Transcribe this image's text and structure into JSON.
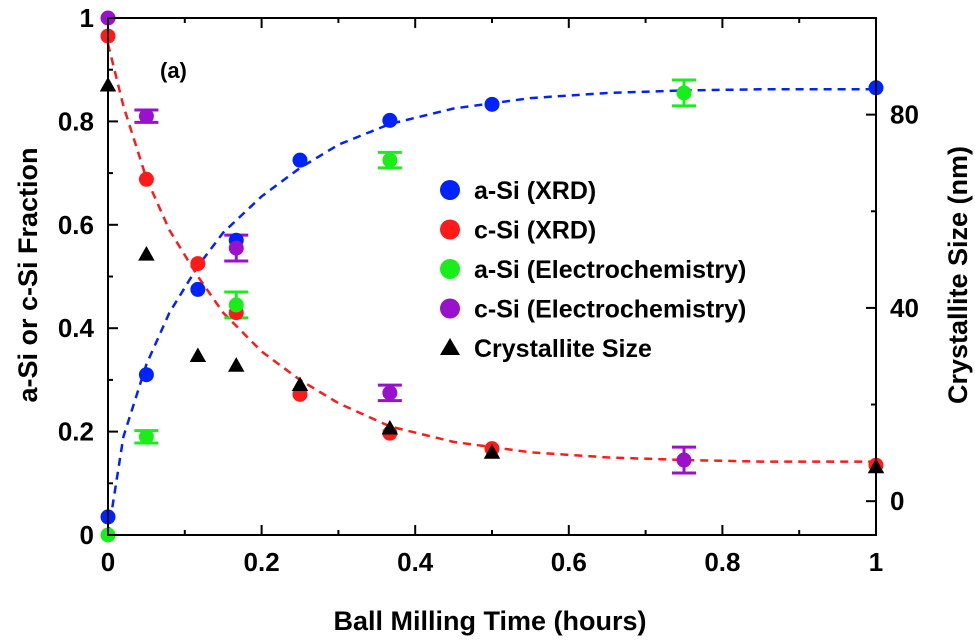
{
  "chart_data": {
    "type": "scatter",
    "panel_label": "(a)",
    "xlabel": "Ball Milling Time (hours)",
    "ylabel": "a-Si or c-Si Fraction",
    "y2label": "Crystallite Size (nm)",
    "xlim": [
      0,
      1
    ],
    "ylim": [
      0,
      1
    ],
    "y2lim": [
      -7,
      100
    ],
    "xticks": [
      0,
      0.2,
      0.4,
      0.6,
      0.8,
      1
    ],
    "xtick_labels": [
      "0",
      "0.2",
      "0.4",
      "0.6",
      "0.8",
      "1"
    ],
    "yticks": [
      0,
      0.2,
      0.4,
      0.6,
      0.8,
      1
    ],
    "ytick_labels": [
      "0",
      "0.2",
      "0.4",
      "0.6",
      "0.8",
      "1"
    ],
    "y2ticks": [
      0,
      40,
      80
    ],
    "y2tick_labels": [
      "0",
      "40",
      "80"
    ],
    "legend_position": "center-right",
    "series": [
      {
        "name": "a-Si (XRD)",
        "color": "#0022ff",
        "marker": "circle",
        "axis": "left",
        "x": [
          0,
          0.05,
          0.117,
          0.167,
          0.25,
          0.367,
          0.5,
          1.0
        ],
        "y": [
          0.035,
          0.31,
          0.475,
          0.57,
          0.725,
          0.802,
          0.833,
          0.865
        ]
      },
      {
        "name": "c-Si (XRD)",
        "color": "#ff1a1a",
        "marker": "circle",
        "axis": "left",
        "x": [
          0,
          0.05,
          0.117,
          0.167,
          0.25,
          0.367,
          0.5,
          1.0
        ],
        "y": [
          0.965,
          0.688,
          0.525,
          0.43,
          0.272,
          0.197,
          0.167,
          0.135
        ]
      },
      {
        "name": "a-Si (Electrochemistry)",
        "color": "#1aee1a",
        "marker": "circle",
        "axis": "left",
        "x": [
          0,
          0.05,
          0.167,
          0.367,
          0.75
        ],
        "y": [
          0.0,
          0.19,
          0.445,
          0.725,
          0.855
        ],
        "err": [
          0,
          0.012,
          0.025,
          0.015,
          0.025
        ]
      },
      {
        "name": "c-Si (Electrochemistry)",
        "color": "#9911cc",
        "marker": "circle",
        "axis": "left",
        "x": [
          0,
          0.05,
          0.167,
          0.367,
          0.75
        ],
        "y": [
          1.0,
          0.81,
          0.555,
          0.275,
          0.145
        ],
        "err": [
          0,
          0.012,
          0.025,
          0.015,
          0.025
        ]
      },
      {
        "name": "Crystallite Size",
        "color": "#000000",
        "marker": "triangle",
        "axis": "right",
        "x": [
          0,
          0.05,
          0.117,
          0.167,
          0.25,
          0.367,
          0.5,
          1.0
        ],
        "y": [
          86,
          51,
          30,
          28,
          24,
          15,
          10,
          7
        ]
      }
    ],
    "fits": [
      {
        "color": "#0022ff",
        "style": "dashed",
        "axis": "left",
        "x": [
          0,
          0.02,
          0.05,
          0.08,
          0.117,
          0.15,
          0.2,
          0.25,
          0.3,
          0.367,
          0.45,
          0.55,
          0.65,
          0.75,
          0.85,
          1.0
        ],
        "y": [
          0.0,
          0.19,
          0.33,
          0.43,
          0.52,
          0.585,
          0.655,
          0.71,
          0.755,
          0.795,
          0.825,
          0.845,
          0.855,
          0.86,
          0.862,
          0.862
        ]
      },
      {
        "color": "#ff1a1a",
        "style": "dashed",
        "axis": "left",
        "x": [
          0,
          0.02,
          0.05,
          0.08,
          0.117,
          0.15,
          0.2,
          0.25,
          0.3,
          0.367,
          0.45,
          0.55,
          0.65,
          0.75,
          0.85,
          1.0
        ],
        "y": [
          0.95,
          0.83,
          0.69,
          0.59,
          0.5,
          0.43,
          0.355,
          0.3,
          0.255,
          0.21,
          0.18,
          0.16,
          0.15,
          0.145,
          0.142,
          0.142
        ]
      }
    ]
  }
}
